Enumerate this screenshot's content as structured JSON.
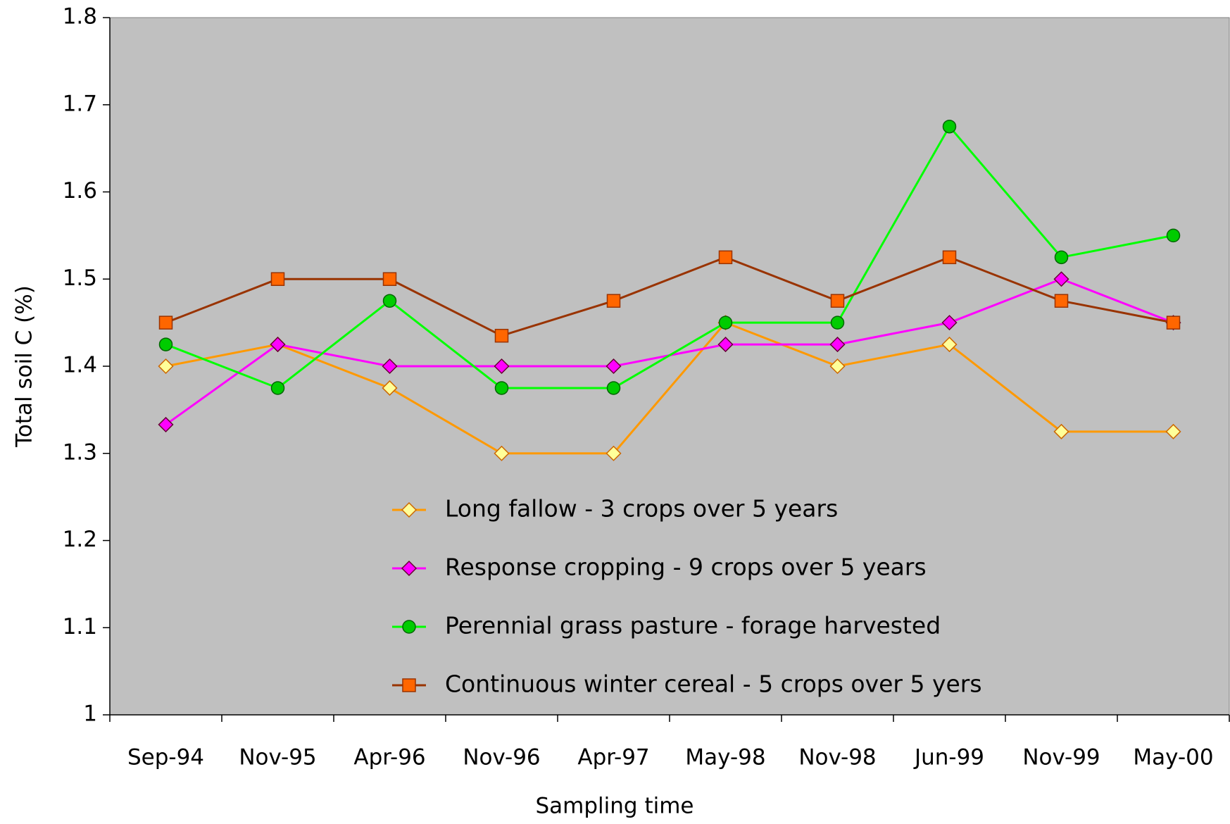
{
  "chart_data": {
    "type": "line",
    "x_label": "Sampling time",
    "y_label": "Total soil C (%)",
    "categories": [
      "Sep-94",
      "Nov-95",
      "Apr-96",
      "Nov-96",
      "Apr-97",
      "May-98",
      "Nov-98",
      "Jun-99",
      "Nov-99",
      "May-00"
    ],
    "series": [
      {
        "name": "Long fallow - 3 crops over 5 years",
        "color": "#ff9900",
        "marker": "diamond",
        "marker_color": "#ffff99",
        "values": [
          1.4,
          1.425,
          1.375,
          1.3,
          1.3,
          1.45,
          1.4,
          1.425,
          1.325,
          1.325
        ]
      },
      {
        "name": "Response cropping - 9 crops over 5 years",
        "color": "#ff00ff",
        "marker": "diamond",
        "marker_color": "#ff00ff",
        "values": [
          1.333,
          1.425,
          1.4,
          1.4,
          1.4,
          1.425,
          1.425,
          1.45,
          1.5,
          1.45
        ]
      },
      {
        "name": "Perennial grass pasture - forage harvested",
        "color": "#00ff00",
        "marker": "circle",
        "marker_color": "#00cc00",
        "values": [
          1.425,
          1.375,
          1.475,
          1.375,
          1.375,
          1.45,
          1.45,
          1.675,
          1.525,
          1.55
        ]
      },
      {
        "name": "Continuous winter cereal - 5 crops over 5 yers",
        "color": "#993300",
        "marker": "square",
        "marker_color": "#ff6600",
        "values": [
          1.45,
          1.5,
          1.5,
          1.435,
          1.475,
          1.525,
          1.475,
          1.525,
          1.475,
          1.45
        ]
      }
    ],
    "ylim": [
      1,
      1.8
    ],
    "yticks": [
      1,
      1.1,
      1.2,
      1.3,
      1.4,
      1.5,
      1.6,
      1.7,
      1.8
    ],
    "plot_background": "#c0c0c0"
  }
}
